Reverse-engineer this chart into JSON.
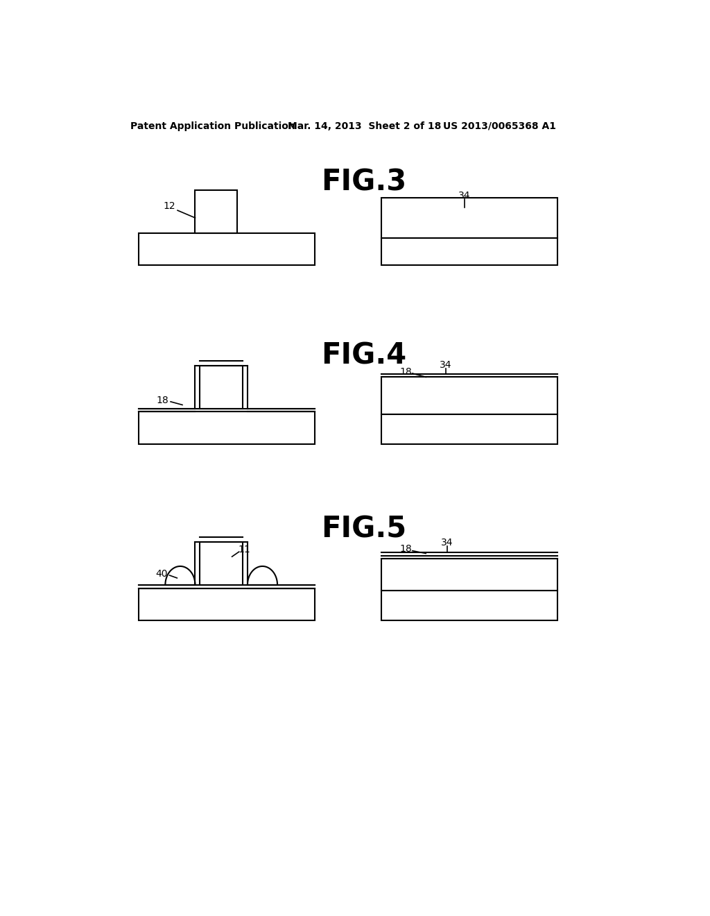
{
  "bg_color": "#ffffff",
  "header_left": "Patent Application Publication",
  "header_center": "Mar. 14, 2013  Sheet 2 of 18",
  "header_right": "US 2013/0065368 A1",
  "fig3_title": "FIG.3",
  "fig4_title": "FIG.4",
  "fig5_title": "FIG.5",
  "line_color": "#000000",
  "line_width": 1.5
}
